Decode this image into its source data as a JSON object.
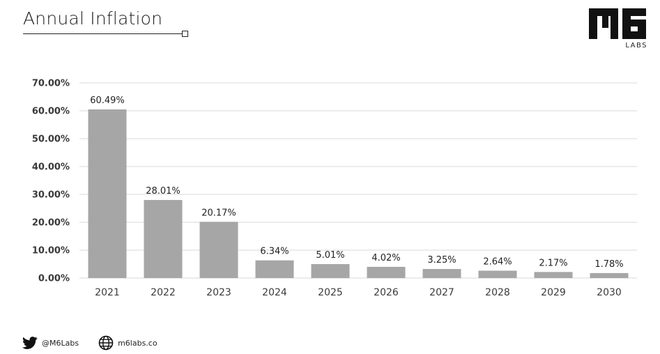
{
  "header": {
    "title": "Annual Inflation",
    "brand_mark": "M6",
    "brand_sub": "LABS"
  },
  "footer": {
    "twitter_handle": "@M6Labs",
    "website": "m6labs.co"
  },
  "colors": {
    "bar": "#a6a6a6",
    "grid": "#d9d9d9",
    "axis_text": "#3a3a3a",
    "label_text": "#222222"
  },
  "icons": [
    "twitter-icon",
    "globe-icon"
  ],
  "chart_data": {
    "type": "bar",
    "title": "Annual Inflation",
    "xlabel": "",
    "ylabel": "",
    "categories": [
      "2021",
      "2022",
      "2023",
      "2024",
      "2025",
      "2026",
      "2027",
      "2028",
      "2029",
      "2030"
    ],
    "values": [
      60.49,
      28.01,
      20.17,
      6.34,
      5.01,
      4.02,
      3.25,
      2.64,
      2.17,
      1.78
    ],
    "value_labels": [
      "60.49%",
      "28.01%",
      "20.17%",
      "6.34%",
      "5.01%",
      "4.02%",
      "3.25%",
      "2.64%",
      "2.17%",
      "1.78%"
    ],
    "ylim": [
      0,
      70
    ],
    "yticks": [
      0,
      10,
      20,
      30,
      40,
      50,
      60,
      70
    ],
    "ytick_labels": [
      "0.00%",
      "10.00%",
      "20.00%",
      "30.00%",
      "40.00%",
      "50.00%",
      "60.00%",
      "70.00%"
    ],
    "grid": true,
    "legend": "none"
  }
}
